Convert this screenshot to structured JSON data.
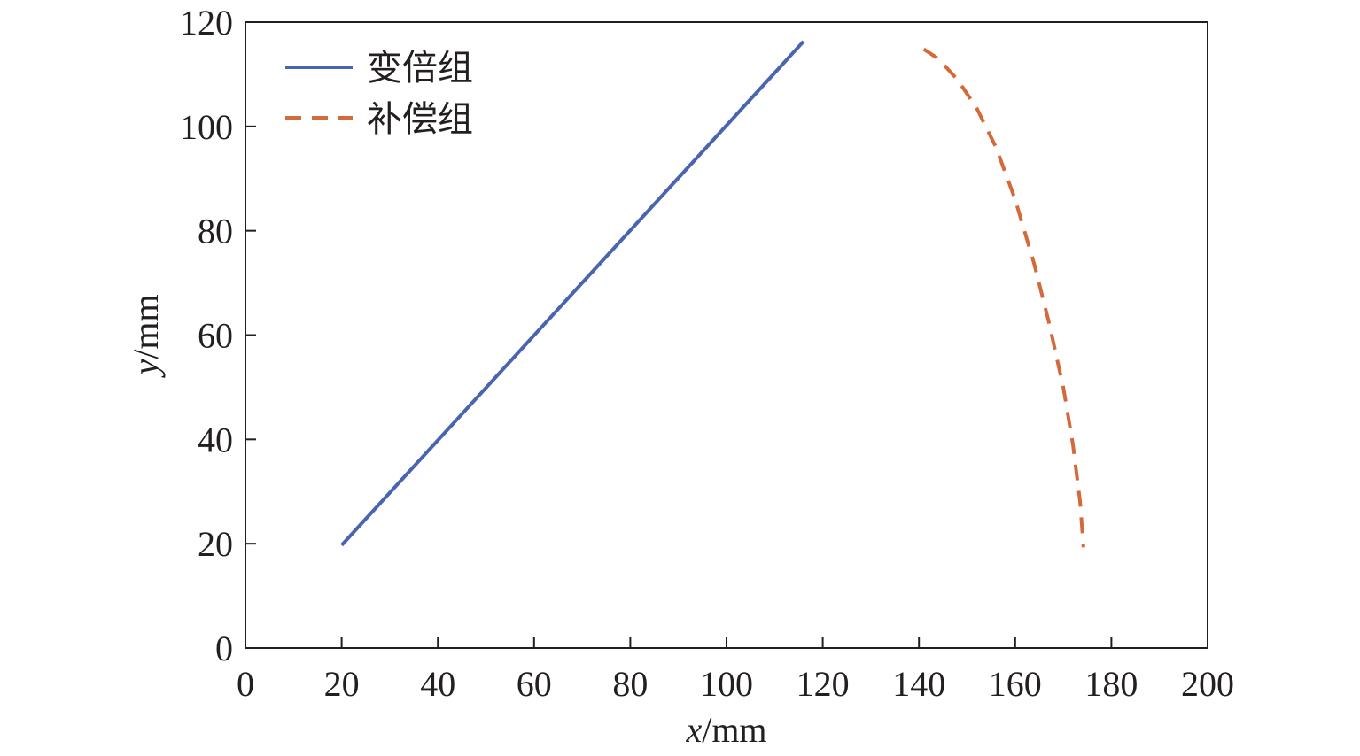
{
  "chart_data": {
    "type": "line",
    "title": "",
    "xlabel": {
      "var": "x",
      "unit": "/mm"
    },
    "ylabel": {
      "var": "y",
      "unit": "/mm"
    },
    "xlim": [
      0,
      200
    ],
    "ylim": [
      0,
      120
    ],
    "xticks": [
      "0",
      "20",
      "40",
      "60",
      "80",
      "100",
      "120",
      "140",
      "160",
      "180",
      "200"
    ],
    "yticks": [
      "0",
      "20",
      "40",
      "60",
      "80",
      "100",
      "120"
    ],
    "grid": false,
    "legend_position": "top-left",
    "series": [
      {
        "name": "变倍组",
        "color": "#4a65b0",
        "style": "solid",
        "points": [
          [
            20,
            19.7
          ],
          [
            116,
            116.3
          ]
        ]
      },
      {
        "name": "补偿组",
        "color": "#d4693a",
        "style": "dashed",
        "points": [
          [
            141,
            114.8
          ],
          [
            144,
            113
          ],
          [
            148,
            109
          ],
          [
            152,
            103.5
          ],
          [
            156,
            96
          ],
          [
            160,
            86
          ],
          [
            164,
            73.5
          ],
          [
            167,
            62.5
          ],
          [
            170,
            50
          ],
          [
            172,
            39
          ],
          [
            173.5,
            28
          ],
          [
            174.2,
            19.3
          ]
        ]
      }
    ]
  }
}
